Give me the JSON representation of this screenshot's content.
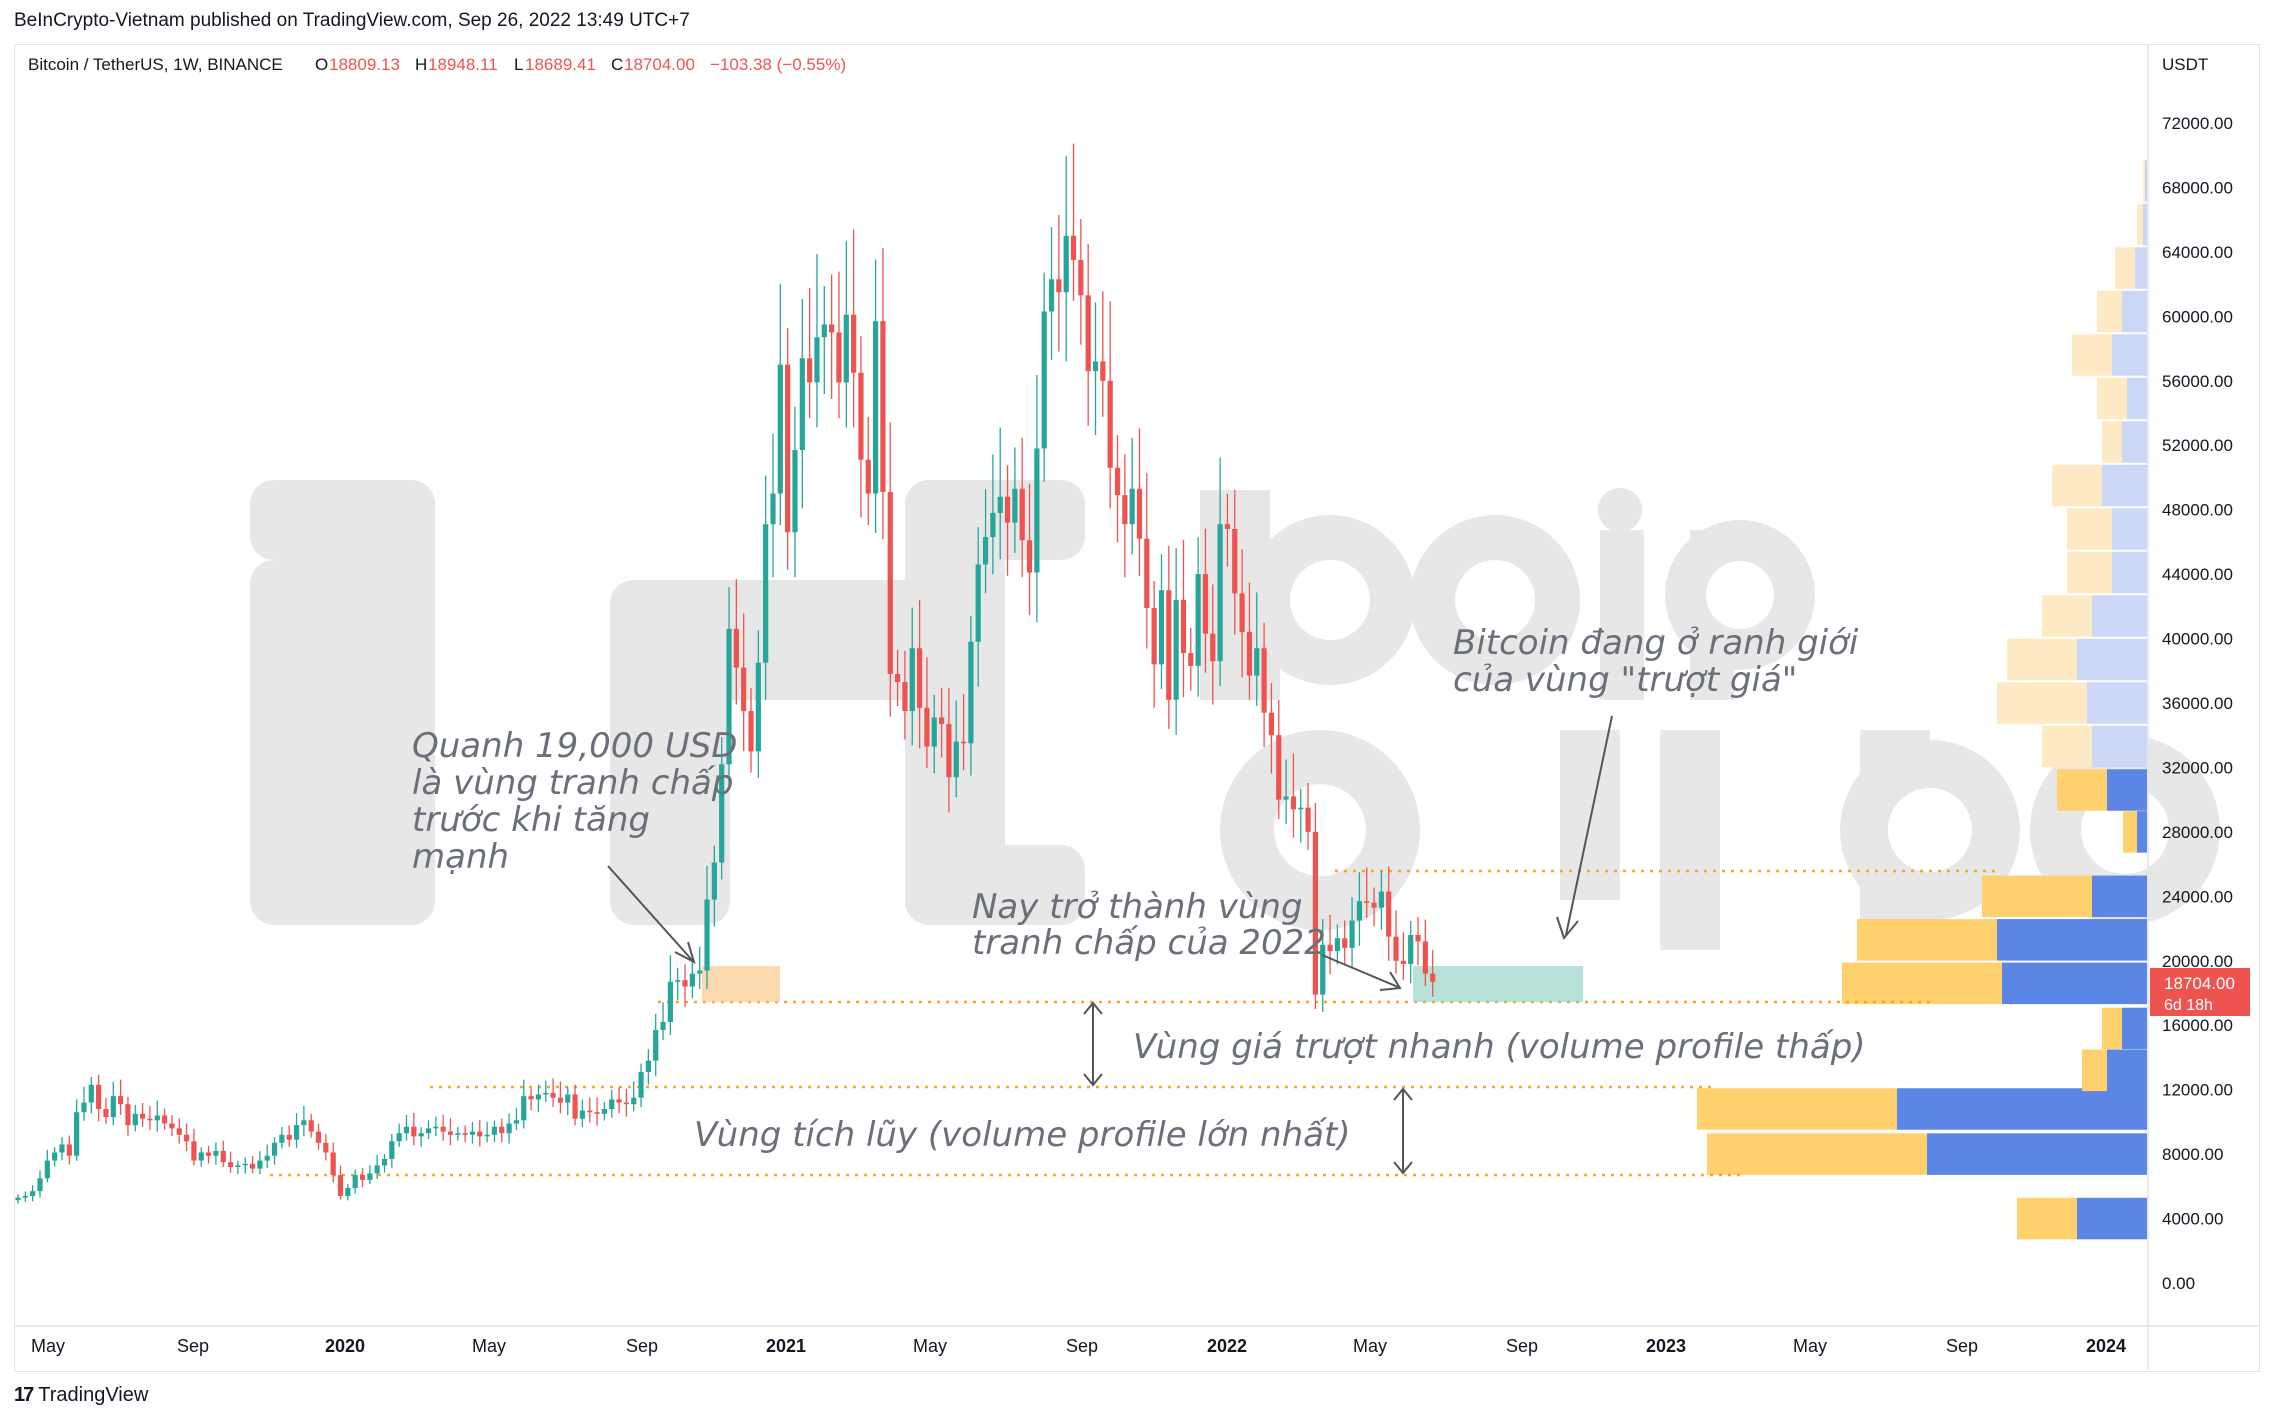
{
  "publisher_line": "BeInCrypto-Vietnam published on TradingView.com, Sep 26, 2022 13:49 UTC+7",
  "brand": "TradingView",
  "chart_data": {
    "type": "candlestick",
    "symbol": "Bitcoin / TetherUS, 1W, BINANCE",
    "ohlc": {
      "O": "18809.13",
      "H": "18948.11",
      "L": "18689.41",
      "C": "18704.00",
      "change": "−103.38 (−0.55%)"
    },
    "price_unit": "USDT",
    "ylim": [
      0,
      78000
    ],
    "y_ticks": [
      "72000.00",
      "68000.00",
      "64000.00",
      "60000.00",
      "56000.00",
      "52000.00",
      "48000.00",
      "44000.00",
      "40000.00",
      "36000.00",
      "32000.00",
      "28000.00",
      "24000.00",
      "20000.00",
      "16000.00",
      "12000.00",
      "8000.00",
      "4000.00",
      "0.00"
    ],
    "x_ticks": [
      "May",
      "Sep",
      "2020",
      "May",
      "Sep",
      "2021",
      "May",
      "Sep",
      "2022",
      "May",
      "Sep",
      "2023",
      "May",
      "Sep",
      "2024"
    ],
    "current_price": {
      "value": 18704,
      "label": "18704.00",
      "countdown": "6d 18h"
    },
    "colors": {
      "up": "#26a69a",
      "down": "#ef5350",
      "dotted": "#f5a623",
      "vp_up_strong": "#ffd16e",
      "vp_down_strong": "#5b86e5",
      "vp_up_weak": "#fde9c4",
      "vp_down_weak": "#ccd7f5"
    },
    "series_close": [
      5300,
      5400,
      5700,
      6500,
      7600,
      8100,
      8600,
      7900,
      10600,
      11200,
      12300,
      10800,
      10300,
      11600,
      11100,
      9800,
      10500,
      10200,
      10100,
      10400,
      9900,
      9600,
      9200,
      8800,
      7600,
      8100,
      7900,
      8200,
      7500,
      7200,
      7300,
      7400,
      7100,
      7600,
      7900,
      8700,
      9200,
      8900,
      9800,
      10100,
      9400,
      8700,
      8100,
      6700,
      5400,
      5900,
      6700,
      6400,
      6800,
      7300,
      7700,
      8800,
      9300,
      9700,
      9100,
      9300,
      9600,
      9700,
      9400,
      9200,
      9300,
      9200,
      9400,
      9100,
      9200,
      9700,
      9300,
      9900,
      10100,
      11600,
      11400,
      11700,
      11800,
      11500,
      11200,
      11700,
      10200,
      10700,
      10600,
      10500,
      10800,
      11400,
      11200,
      11100,
      11500,
      13100,
      13800,
      15700,
      16200,
      18700,
      18800,
      18400,
      19200,
      19400,
      23800,
      26100,
      32200,
      40600,
      38200,
      35500,
      33000,
      38500,
      47100,
      49000,
      57000,
      46600,
      51700,
      57400,
      55900,
      58700,
      59500,
      59000,
      55900,
      60100,
      56500,
      51100,
      49000,
      59700,
      49100,
      37800,
      37300,
      35500,
      39400,
      35700,
      33300,
      35100,
      34700,
      31400,
      33600,
      33500,
      39800,
      44600,
      46300,
      47800,
      48800,
      47200,
      49300,
      46100,
      44100,
      51800,
      60300,
      62300,
      61500,
      65000,
      63500,
      61300,
      56600,
      57200,
      56000,
      50600,
      48900,
      47100,
      49300,
      46200,
      41900,
      38400,
      43000,
      36200,
      42400,
      39100,
      38300,
      44000,
      40300,
      38600,
      47100,
      46800,
      42800,
      40400,
      37700,
      39400,
      35400,
      34000,
      30000,
      30200,
      29400,
      29500,
      28000,
      17900,
      21000,
      20600,
      21400,
      20800,
      22500,
      23700,
      23600,
      23300,
      24300,
      21500,
      20000,
      19800,
      21600,
      21200,
      19200,
      18700
    ],
    "key_levels": [
      25700,
      17600,
      11800,
      6600
    ],
    "annotations": {
      "left_note": [
        "Quanh 19,000 USD",
        "là vùng tranh chấp",
        "trước khi tăng",
        "mạnh"
      ],
      "middle_note": [
        "Nay trở thành vùng",
        "tranh chấp của 2022"
      ],
      "right_note": [
        "Bitcoin đang ở ranh giới",
        "của vùng \"trượt giá\""
      ],
      "band_fast": "Vùng giá trượt nhanh (volume profile thấp)",
      "band_accum": "Vùng tích lũy (volume profile lớn nhất)"
    },
    "volume_profile": [
      {
        "price": 4000,
        "up": 60,
        "down": 70
      },
      {
        "price": 8000,
        "up": 220,
        "down": 220
      },
      {
        "price": 10800,
        "up": 200,
        "down": 250
      },
      {
        "price": 13200,
        "up": 25,
        "down": 40
      },
      {
        "price": 15800,
        "up": 20,
        "down": 25
      },
      {
        "price": 18600,
        "up": 160,
        "down": 145
      },
      {
        "price": 21300,
        "up": 140,
        "down": 150
      },
      {
        "price": 24000,
        "up": 110,
        "down": 55
      },
      {
        "price": 28000,
        "up": 14,
        "down": 10
      },
      {
        "price": 30600,
        "up": 50,
        "down": 40
      },
      {
        "price": 33300,
        "up": 50,
        "down": 55
      },
      {
        "price": 36000,
        "up": 90,
        "down": 60
      },
      {
        "price": 38700,
        "up": 70,
        "down": 70
      },
      {
        "price": 41400,
        "up": 50,
        "down": 55
      },
      {
        "price": 44100,
        "up": 45,
        "down": 35
      },
      {
        "price": 46800,
        "up": 45,
        "down": 35
      },
      {
        "price": 49500,
        "up": 50,
        "down": 45
      },
      {
        "price": 52200,
        "up": 20,
        "down": 25
      },
      {
        "price": 54900,
        "up": 30,
        "down": 20
      },
      {
        "price": 57600,
        "up": 40,
        "down": 35
      },
      {
        "price": 60300,
        "up": 25,
        "down": 25
      },
      {
        "price": 63000,
        "up": 20,
        "down": 12
      },
      {
        "price": 65700,
        "up": 6,
        "down": 4
      },
      {
        "price": 68400,
        "up": 2,
        "down": 2
      }
    ]
  }
}
